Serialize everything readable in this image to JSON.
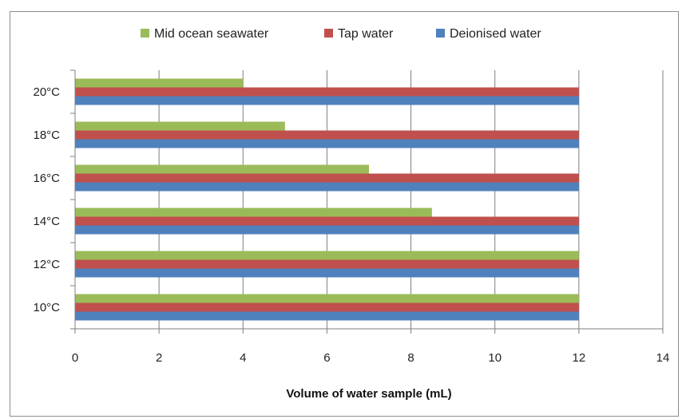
{
  "chart_data": {
    "type": "bar",
    "orientation": "horizontal",
    "categories": [
      "10°C",
      "12°C",
      "14°C",
      "16°C",
      "18°C",
      "20°C"
    ],
    "series": [
      {
        "name": "Mid ocean seawater",
        "color": "#9bbb59",
        "values": [
          12,
          12,
          8.5,
          7,
          5,
          4
        ]
      },
      {
        "name": "Tap water",
        "color": "#c0504d",
        "values": [
          12,
          12,
          12,
          12,
          12,
          12
        ]
      },
      {
        "name": "Deionised water",
        "color": "#4f81bd",
        "values": [
          12,
          12,
          12,
          12,
          12,
          12
        ]
      }
    ],
    "xlabel": "Volume of water sample (mL)",
    "ylabel": "",
    "xlim": [
      0,
      14
    ],
    "xticks": [
      0,
      2,
      4,
      6,
      8,
      10,
      12,
      14
    ],
    "grid": "vertical",
    "legend": "top"
  }
}
